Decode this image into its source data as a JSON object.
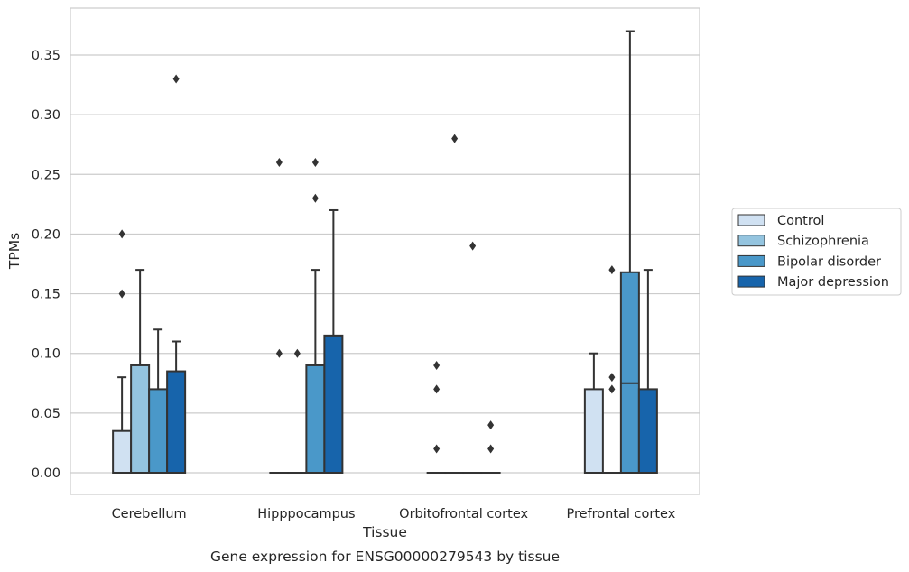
{
  "chart_data": {
    "type": "box",
    "xlabel": "Tissue",
    "ylabel": "TPMs",
    "caption": "Gene expression for ENSG00000279543 by tissue",
    "ylim": [
      -0.018,
      0.388
    ],
    "yticks": [
      "0.00",
      "0.05",
      "0.10",
      "0.15",
      "0.20",
      "0.25",
      "0.30",
      "0.35"
    ],
    "grid": "horizontal",
    "legend_position": "right",
    "categories": [
      "Cerebellum",
      "Hipppocampus",
      "Orbitofrontal cortex",
      "Prefrontal cortex"
    ],
    "series": [
      {
        "name": "Control",
        "color": "#d0e1f2",
        "boxes": [
          {
            "q1": 0.0,
            "median": 0.0,
            "q3": 0.035,
            "whisker_low": 0.0,
            "whisker_high": 0.08,
            "outliers": [
              0.15,
              0.2
            ]
          },
          {
            "q1": 0.0,
            "median": 0.0,
            "q3": 0.0,
            "whisker_low": 0.0,
            "whisker_high": 0.0,
            "outliers": [
              0.1,
              0.26
            ]
          },
          {
            "q1": 0.0,
            "median": 0.0,
            "q3": 0.0,
            "whisker_low": 0.0,
            "whisker_high": 0.0,
            "outliers": [
              0.02,
              0.07,
              0.09
            ]
          },
          {
            "q1": 0.0,
            "median": 0.0,
            "q3": 0.07,
            "whisker_low": 0.0,
            "whisker_high": 0.1,
            "outliers": []
          }
        ]
      },
      {
        "name": "Schizophrenia",
        "color": "#94c4df",
        "boxes": [
          {
            "q1": 0.0,
            "median": 0.0,
            "q3": 0.09,
            "whisker_low": 0.0,
            "whisker_high": 0.17,
            "outliers": []
          },
          {
            "q1": 0.0,
            "median": 0.0,
            "q3": 0.0,
            "whisker_low": 0.0,
            "whisker_high": 0.0,
            "outliers": [
              0.1
            ]
          },
          {
            "q1": 0.0,
            "median": 0.0,
            "q3": 0.0,
            "whisker_low": 0.0,
            "whisker_high": 0.0,
            "outliers": [
              0.28
            ]
          },
          {
            "q1": 0.0,
            "median": 0.0,
            "q3": 0.0,
            "whisker_low": 0.0,
            "whisker_high": 0.0,
            "outliers": [
              0.07,
              0.08,
              0.17
            ]
          }
        ]
      },
      {
        "name": "Bipolar disorder",
        "color": "#4a98c9",
        "boxes": [
          {
            "q1": 0.0,
            "median": 0.0,
            "q3": 0.07,
            "whisker_low": 0.0,
            "whisker_high": 0.12,
            "outliers": []
          },
          {
            "q1": 0.0,
            "median": 0.0,
            "q3": 0.09,
            "whisker_low": 0.0,
            "whisker_high": 0.17,
            "outliers": [
              0.23,
              0.26
            ]
          },
          {
            "q1": 0.0,
            "median": 0.0,
            "q3": 0.0,
            "whisker_low": 0.0,
            "whisker_high": 0.0,
            "outliers": [
              0.19
            ]
          },
          {
            "q1": 0.0,
            "median": 0.075,
            "q3": 0.168,
            "whisker_low": 0.0,
            "whisker_high": 0.37,
            "outliers": []
          }
        ]
      },
      {
        "name": "Major depression",
        "color": "#1764ab",
        "boxes": [
          {
            "q1": 0.0,
            "median": 0.0,
            "q3": 0.085,
            "whisker_low": 0.0,
            "whisker_high": 0.11,
            "outliers": [
              0.33
            ]
          },
          {
            "q1": 0.0,
            "median": 0.0,
            "q3": 0.115,
            "whisker_low": 0.0,
            "whisker_high": 0.22,
            "outliers": []
          },
          {
            "q1": 0.0,
            "median": 0.0,
            "q3": 0.0,
            "whisker_low": 0.0,
            "whisker_high": 0.0,
            "outliers": [
              0.02,
              0.04
            ]
          },
          {
            "q1": 0.0,
            "median": 0.0,
            "q3": 0.07,
            "whisker_low": 0.0,
            "whisker_high": 0.17,
            "outliers": []
          }
        ]
      }
    ]
  }
}
